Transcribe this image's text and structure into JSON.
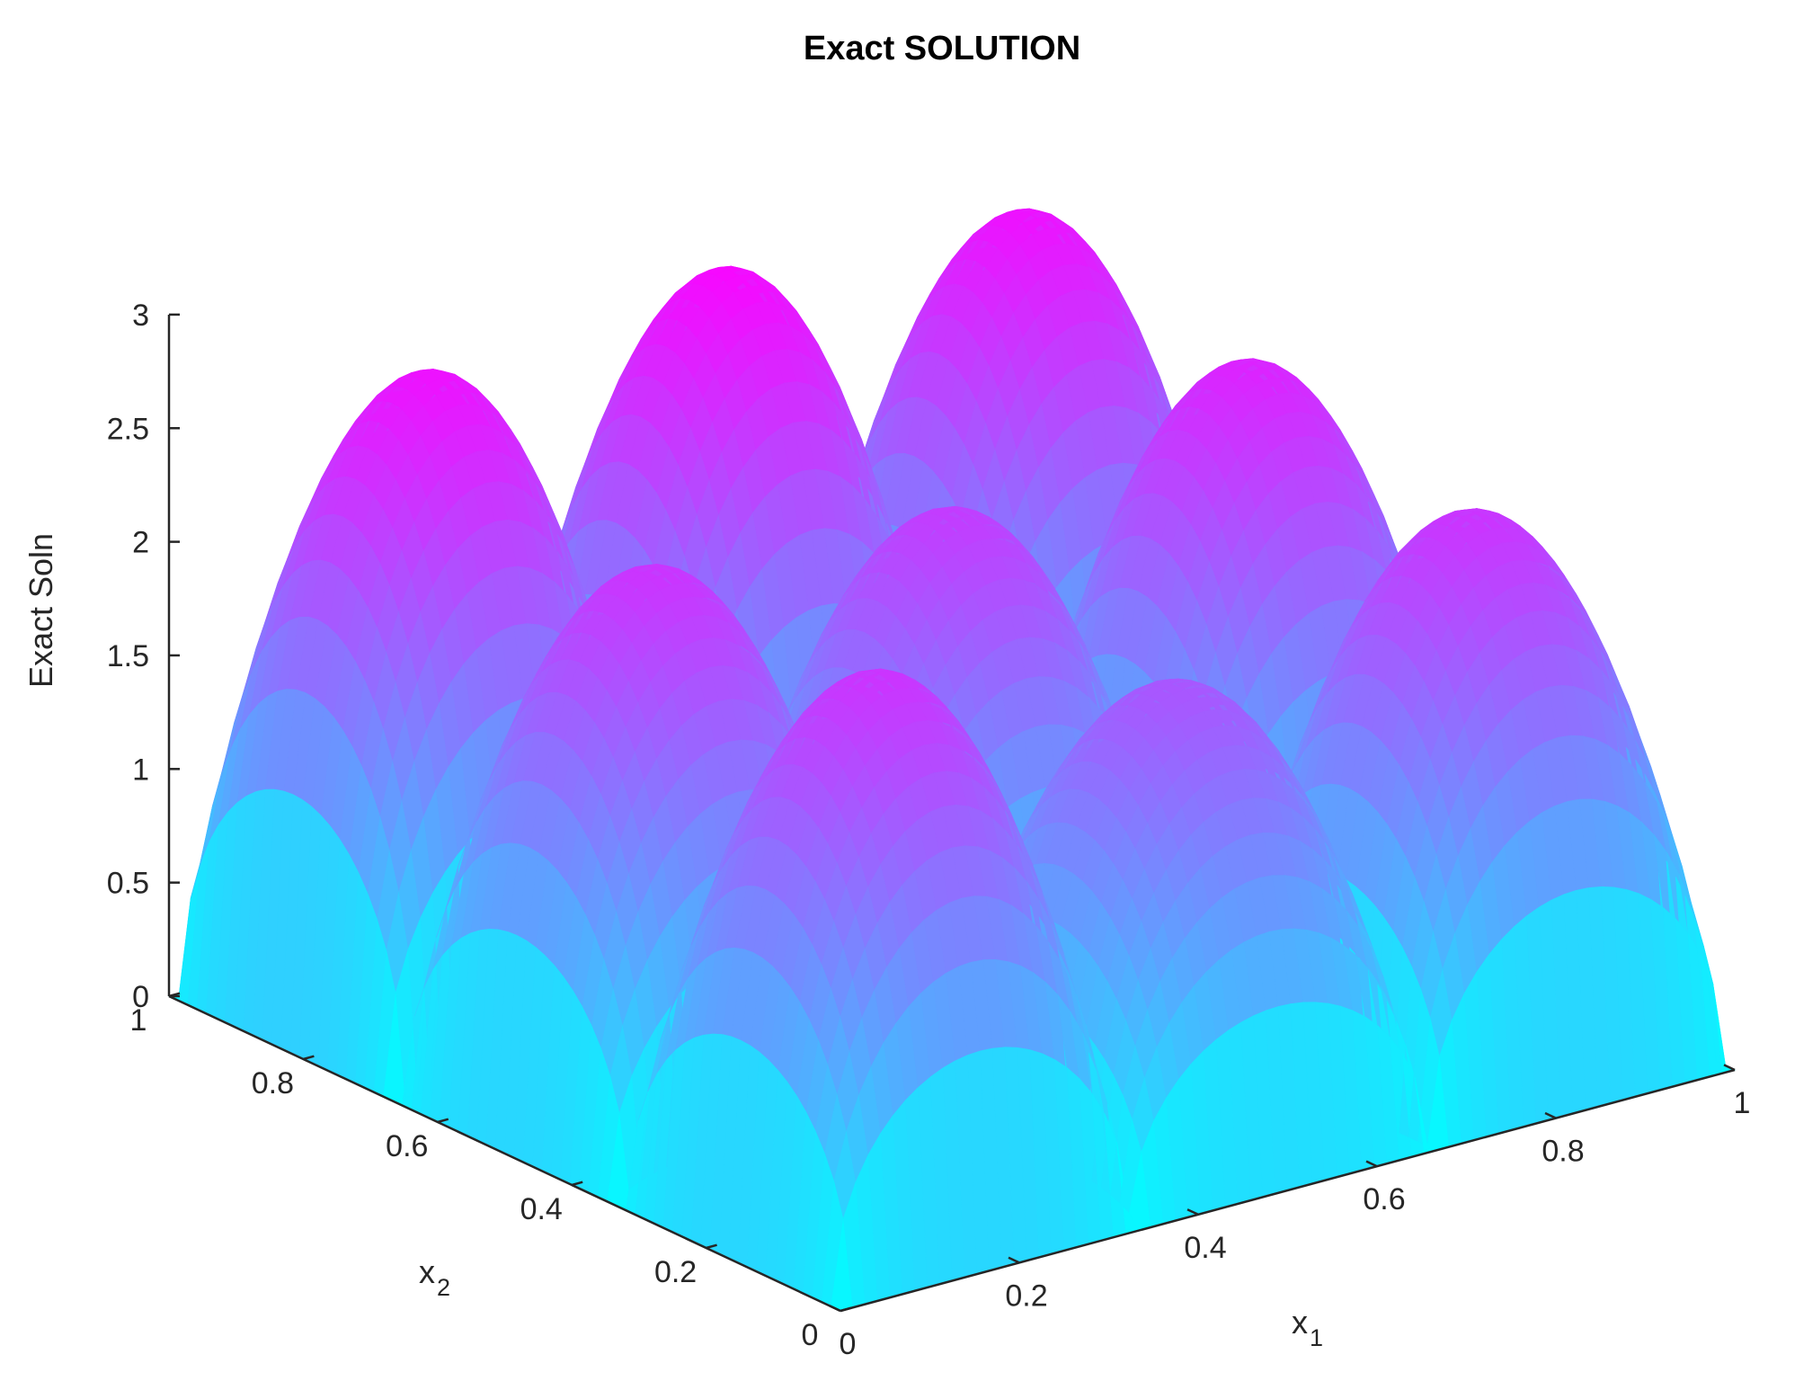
{
  "chart_data": {
    "type": "surface",
    "title": "Exact SOLUTION",
    "xlabel": "x",
    "xlabel_sub": "1",
    "ylabel": "x",
    "ylabel_sub": "2",
    "zlabel": "Exact Soln",
    "xlim": [
      0,
      1
    ],
    "ylim": [
      0,
      1
    ],
    "zlim": [
      0,
      3
    ],
    "x_ticks": [
      "0",
      "0.2",
      "0.4",
      "0.6",
      "0.8",
      "1"
    ],
    "y_ticks": [
      "0",
      "0.2",
      "0.4",
      "0.6",
      "0.8",
      "1"
    ],
    "z_ticks": [
      "0",
      "0.5",
      "1",
      "1.5",
      "2",
      "2.5",
      "3"
    ],
    "colormap": [
      "#00ffff",
      "#ff00ff"
    ],
    "grid": false,
    "lobes": [
      {
        "x1_center": 0.167,
        "x2_center": 0.167,
        "peak": 2.4
      },
      {
        "x1_center": 0.5,
        "x2_center": 0.167,
        "peak": 2.0
      },
      {
        "x1_center": 0.833,
        "x2_center": 0.167,
        "peak": 2.4
      },
      {
        "x1_center": 0.167,
        "x2_center": 0.5,
        "peak": 2.4
      },
      {
        "x1_center": 0.5,
        "x2_center": 0.5,
        "peak": 2.3
      },
      {
        "x1_center": 0.833,
        "x2_center": 0.5,
        "peak": 2.6
      },
      {
        "x1_center": 0.167,
        "x2_center": 0.833,
        "peak": 2.8
      },
      {
        "x1_center": 0.5,
        "x2_center": 0.833,
        "peak": 2.9
      },
      {
        "x1_center": 0.833,
        "x2_center": 0.833,
        "peak": 2.8
      }
    ]
  }
}
